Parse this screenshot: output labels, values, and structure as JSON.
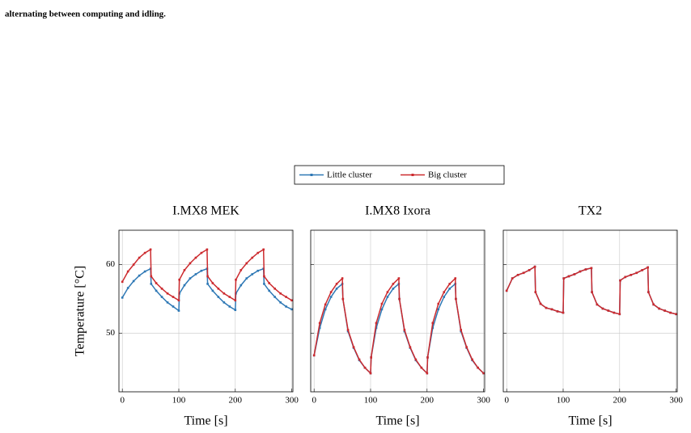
{
  "caption": "alternating between computing and idling.",
  "chart_data": [
    {
      "type": "line",
      "title": "I.MX8 MEK",
      "xlabel": "Time [s]",
      "ylabel": "Temperature [°C]",
      "x": [
        0,
        10,
        20,
        30,
        40,
        50,
        51,
        60,
        70,
        80,
        90,
        100,
        101,
        110,
        120,
        130,
        140,
        150,
        151,
        160,
        170,
        180,
        190,
        200,
        201,
        210,
        220,
        230,
        240,
        250,
        251,
        260,
        270,
        280,
        290,
        300
      ],
      "xlim": [
        -6,
        302
      ],
      "xticks": [
        0,
        100,
        200,
        300
      ],
      "ylim": [
        41.5,
        65
      ],
      "yticks": [
        50,
        60
      ],
      "grid": true,
      "series": [
        {
          "name": "Little cluster",
          "color": "#2e78b5",
          "values": [
            55.2,
            56.6,
            57.6,
            58.4,
            59,
            59.4,
            57.2,
            56.2,
            55.3,
            54.5,
            53.9,
            53.3,
            55.8,
            57,
            58,
            58.6,
            59.1,
            59.4,
            57.2,
            56.2,
            55.3,
            54.5,
            53.9,
            53.4,
            55.8,
            57,
            58,
            58.6,
            59.1,
            59.4,
            57.2,
            56.2,
            55.3,
            54.5,
            53.9,
            53.5
          ]
        },
        {
          "name": "Big cluster",
          "color": "#cc2a2e",
          "values": [
            57.5,
            59,
            60,
            61,
            61.7,
            62.2,
            58.3,
            57.3,
            56.5,
            55.8,
            55.3,
            54.8,
            57.8,
            59.2,
            60.2,
            61,
            61.7,
            62.2,
            58.3,
            57.3,
            56.5,
            55.8,
            55.3,
            54.8,
            57.8,
            59.2,
            60.2,
            61,
            61.7,
            62.2,
            58.3,
            57.3,
            56.5,
            55.8,
            55.3,
            54.8
          ]
        }
      ]
    },
    {
      "type": "line",
      "title": "I.MX8 Ixora",
      "xlabel": "Time [s]",
      "x": [
        0,
        10,
        20,
        30,
        40,
        50,
        51,
        60,
        70,
        80,
        90,
        100,
        101,
        110,
        120,
        130,
        140,
        150,
        151,
        160,
        170,
        180,
        190,
        200,
        201,
        210,
        220,
        230,
        240,
        250,
        251,
        260,
        270,
        280,
        290,
        300
      ],
      "xlim": [
        -6,
        302
      ],
      "xticks": [
        0,
        100,
        200,
        300
      ],
      "ylim": [
        41.5,
        65
      ],
      "yticks": [
        50,
        60
      ],
      "grid": true,
      "series": [
        {
          "color": "#2e78b5",
          "values": [
            46.8,
            50.8,
            53.5,
            55.3,
            56.5,
            57.2,
            55,
            50.3,
            47.9,
            46.1,
            45,
            44.2,
            46.5,
            50.8,
            53.5,
            55.3,
            56.5,
            57.2,
            55,
            50.3,
            47.9,
            46.1,
            45,
            44.2,
            46.5,
            50.8,
            53.5,
            55.3,
            56.5,
            57.2,
            55,
            50.3,
            47.9,
            46.1,
            45,
            44.2
          ]
        },
        {
          "color": "#cc2a2e",
          "values": [
            46.8,
            51.5,
            54.2,
            56,
            57.2,
            58,
            55,
            50.5,
            48,
            46.2,
            45,
            44.2,
            46.5,
            51.5,
            54.3,
            56,
            57.2,
            58,
            55,
            50.5,
            48,
            46.2,
            45,
            44.2,
            46.5,
            51.5,
            54.3,
            56,
            57.2,
            58,
            55,
            50.5,
            48,
            46.2,
            45,
            44.2
          ]
        }
      ]
    },
    {
      "type": "line",
      "title": "TX2",
      "xlabel": "Time [s]",
      "x": [
        0,
        10,
        20,
        30,
        40,
        50,
        51,
        60,
        70,
        80,
        90,
        100,
        101,
        110,
        120,
        130,
        140,
        150,
        151,
        160,
        170,
        180,
        190,
        200,
        201,
        210,
        220,
        230,
        240,
        250,
        251,
        260,
        270,
        280,
        290,
        300
      ],
      "xlim": [
        -6,
        302
      ],
      "xticks": [
        0,
        100,
        200,
        300
      ],
      "ylim": [
        41.5,
        65
      ],
      "yticks": [
        50,
        60
      ],
      "grid": true,
      "series": [
        {
          "color": "#2e78b5",
          "values": [
            56.2,
            58,
            58.5,
            58.8,
            59.2,
            59.7,
            56,
            54.3,
            53.7,
            53.5,
            53.2,
            53,
            58,
            58.3,
            58.6,
            59,
            59.3,
            59.5,
            56,
            54.2,
            53.6,
            53.3,
            53,
            52.8,
            57.7,
            58.2,
            58.5,
            58.8,
            59.2,
            59.6,
            56,
            54.2,
            53.6,
            53.3,
            53,
            52.8
          ]
        },
        {
          "color": "#cc2a2e",
          "values": [
            56.2,
            58,
            58.5,
            58.8,
            59.2,
            59.7,
            56,
            54.3,
            53.7,
            53.5,
            53.2,
            53,
            58,
            58.3,
            58.6,
            59,
            59.3,
            59.5,
            56,
            54.2,
            53.6,
            53.3,
            53,
            52.8,
            57.7,
            58.2,
            58.5,
            58.8,
            59.2,
            59.6,
            56,
            54.2,
            53.6,
            53.3,
            53,
            52.8
          ]
        }
      ]
    }
  ]
}
